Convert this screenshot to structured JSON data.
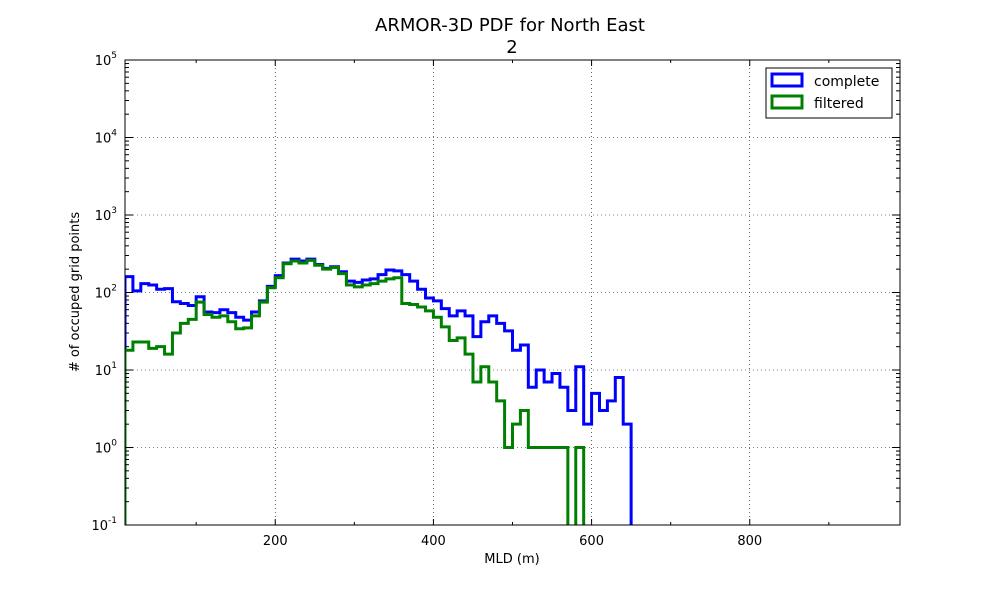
{
  "chart_data": {
    "type": "line",
    "title": "ARMOR-3D PDF for North East",
    "subtitle": "2",
    "xlabel": "MLD (m)",
    "ylabel": "# of occuped grid points",
    "xlim": [
      10,
      990
    ],
    "ylim": [
      0.1,
      100000
    ],
    "yscale": "log",
    "grid": true,
    "legend_position": "top-right",
    "x_ticks": [
      200,
      400,
      600,
      800
    ],
    "y_ticks": [
      {
        "base": "10",
        "exp": "-1",
        "value": 0.1
      },
      {
        "base": "10",
        "exp": "0",
        "value": 1
      },
      {
        "base": "10",
        "exp": "1",
        "value": 10
      },
      {
        "base": "10",
        "exp": "2",
        "value": 100
      },
      {
        "base": "10",
        "exp": "3",
        "value": 1000
      },
      {
        "base": "10",
        "exp": "4",
        "value": 10000
      },
      {
        "base": "10",
        "exp": "5",
        "value": 100000
      }
    ],
    "bin_edges": [
      10,
      20,
      30,
      40,
      50,
      60,
      70,
      80,
      90,
      100,
      110,
      120,
      130,
      140,
      150,
      160,
      170,
      180,
      190,
      200,
      210,
      220,
      230,
      240,
      250,
      260,
      270,
      280,
      290,
      300,
      310,
      320,
      330,
      340,
      350,
      360,
      370,
      380,
      390,
      400,
      410,
      420,
      430,
      440,
      450,
      460,
      470,
      480,
      490,
      500,
      510,
      520,
      530,
      540,
      550,
      560,
      570,
      580,
      590,
      600,
      610,
      620,
      630,
      640,
      650
    ],
    "series": [
      {
        "name": "complete",
        "color": "#0000ff",
        "values": [
          160,
          105,
          130,
          125,
          110,
          112,
          76,
          72,
          68,
          88,
          56,
          55,
          60,
          55,
          48,
          44,
          56,
          78,
          120,
          165,
          240,
          270,
          255,
          270,
          230,
          205,
          215,
          185,
          140,
          135,
          145,
          150,
          170,
          195,
          190,
          170,
          140,
          110,
          85,
          78,
          62,
          50,
          58,
          50,
          27,
          42,
          50,
          40,
          32,
          18,
          21,
          6,
          10,
          7,
          9,
          6,
          3,
          11,
          2,
          5,
          3,
          4,
          8,
          2
        ]
      },
      {
        "name": "filtered",
        "color": "#008000",
        "values": [
          18,
          23,
          23,
          19,
          20,
          16,
          30,
          40,
          45,
          75,
          52,
          48,
          50,
          42,
          34,
          35,
          50,
          75,
          115,
          155,
          235,
          255,
          240,
          260,
          225,
          200,
          210,
          175,
          125,
          118,
          125,
          130,
          140,
          150,
          155,
          72,
          70,
          65,
          58,
          48,
          36,
          24,
          26,
          16,
          7,
          11,
          7,
          4,
          1,
          2,
          3,
          1,
          1,
          1,
          1,
          1,
          0,
          1,
          0,
          0,
          0,
          0,
          0,
          0
        ]
      }
    ]
  }
}
